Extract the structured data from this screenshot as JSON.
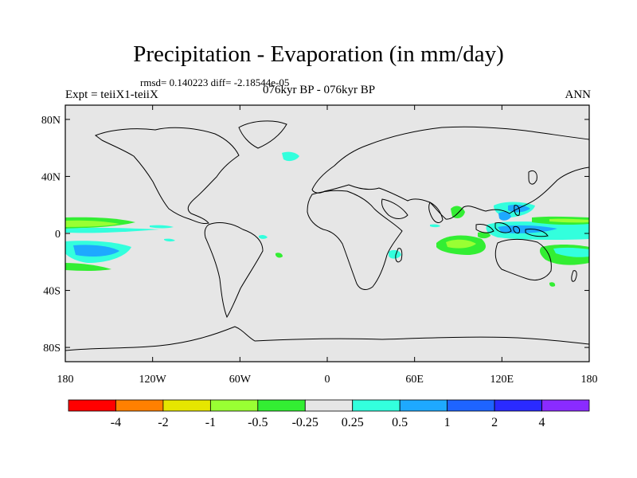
{
  "title": "Precipitation - Evaporation (in mm/day)",
  "stats": "rmsd= 0.140223 diff= -2.18544e-05",
  "left_label": "Expt = teiiX1-teiiX",
  "center_label": "076kyr BP - 076kyr BP",
  "right_label": "ANN",
  "map": {
    "background_color": "#e6e6e6",
    "lat_ticks": [
      {
        "lat": 80,
        "label": "80N"
      },
      {
        "lat": 40,
        "label": "40N"
      },
      {
        "lat": 0,
        "label": "0"
      },
      {
        "lat": -40,
        "label": "40S"
      },
      {
        "lat": -80,
        "label": "80S"
      }
    ],
    "lon_ticks": [
      {
        "lon": -180,
        "label": "180"
      },
      {
        "lon": -120,
        "label": "120W"
      },
      {
        "lon": -60,
        "label": "60W"
      },
      {
        "lon": 0,
        "label": "0"
      },
      {
        "lon": 60,
        "label": "60E"
      },
      {
        "lon": 120,
        "label": "120E"
      },
      {
        "lon": 180,
        "label": "180"
      }
    ]
  },
  "colorbar": {
    "colors": [
      "#ff0000",
      "#ff8000",
      "#e6e600",
      "#99ff33",
      "#33ee33",
      "#e6e6e6",
      "#33ffdd",
      "#1ea9ff",
      "#1e64ff",
      "#2a2aff",
      "#8a2bff"
    ],
    "labels": [
      "-4",
      "-2",
      "-1",
      "-0.5",
      "-0.25",
      "0.25",
      "0.5",
      "1",
      "2",
      "4"
    ]
  }
}
